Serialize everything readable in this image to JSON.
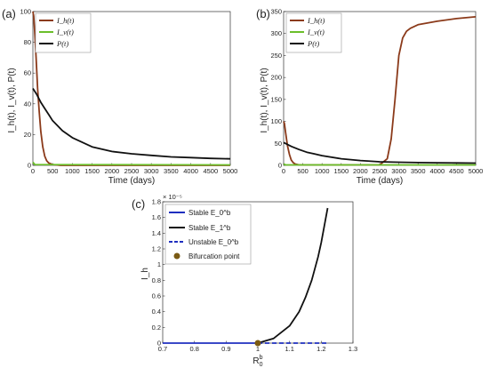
{
  "panels": [
    {
      "label": "(a)"
    },
    {
      "label": "(b)"
    },
    {
      "label": "(c)"
    }
  ],
  "chart_data": [
    {
      "type": "line",
      "panel": "(a)",
      "xlabel": "Time (days)",
      "ylabel": "I_h(t), I_v(t), P(t)",
      "xlim": [
        0,
        5000
      ],
      "ylim": [
        0,
        100
      ],
      "xticks": [
        "0",
        "500",
        "1000",
        "1500",
        "2000",
        "2500",
        "3000",
        "3500",
        "4000",
        "4500",
        "5000"
      ],
      "yticks": [
        "0",
        "20",
        "40",
        "60",
        "80",
        "100"
      ],
      "grid": false,
      "legend": "top-left",
      "series": [
        {
          "name": "I_h(t)",
          "color": "#8B3A1A",
          "x": [
            0,
            20,
            50,
            80,
            120,
            160,
            200,
            250,
            300,
            350,
            400,
            500,
            700,
            1000,
            5000
          ],
          "y": [
            100,
            97,
            85,
            70,
            50,
            35,
            22,
            12,
            6,
            3,
            1.5,
            0.5,
            0,
            0,
            0
          ]
        },
        {
          "name": "I_v(t)",
          "color": "#6BBF2A",
          "x": [
            0,
            50,
            5000
          ],
          "y": [
            2,
            0.5,
            0.3
          ]
        },
        {
          "name": "P(t)",
          "color": "#111111",
          "x": [
            0,
            100,
            200,
            300,
            400,
            500,
            750,
            1000,
            1500,
            2000,
            2500,
            3000,
            3500,
            4000,
            4500,
            5000
          ],
          "y": [
            50,
            46,
            41,
            37,
            33,
            29,
            22.5,
            18,
            12,
            9,
            7.5,
            6.5,
            5.5,
            5,
            4.5,
            4.2
          ]
        }
      ]
    },
    {
      "type": "line",
      "panel": "(b)",
      "xlabel": "Time (days)",
      "ylabel": "I_h(t), I_v(t), P(t)",
      "xlim": [
        0,
        5000
      ],
      "ylim": [
        0,
        350
      ],
      "xticks": [
        "0",
        "500",
        "1000",
        "1500",
        "2000",
        "2500",
        "3000",
        "3500",
        "4000",
        "4500",
        "5000"
      ],
      "yticks": [
        "0",
        "50",
        "100",
        "150",
        "200",
        "250",
        "300",
        "350"
      ],
      "grid": false,
      "legend": "top-left",
      "series": [
        {
          "name": "I_h(t)",
          "color": "#8B3A1A",
          "x": [
            0,
            20,
            50,
            100,
            150,
            200,
            250,
            300,
            400,
            2500,
            2700,
            2800,
            2900,
            3000,
            3100,
            3200,
            3300,
            3500,
            4000,
            4500,
            5000
          ],
          "y": [
            100,
            95,
            75,
            45,
            25,
            12,
            6,
            3,
            1,
            1,
            15,
            60,
            150,
            250,
            290,
            305,
            312,
            320,
            328,
            334,
            338
          ]
        },
        {
          "name": "I_v(t)",
          "color": "#6BBF2A",
          "x": [
            0,
            50,
            5000
          ],
          "y": [
            3,
            1,
            1
          ]
        },
        {
          "name": "P(t)",
          "color": "#111111",
          "x": [
            0,
            200,
            400,
            600,
            800,
            1000,
            1500,
            2000,
            2500,
            3000,
            3500,
            4000,
            4500,
            5000
          ],
          "y": [
            52,
            43,
            36,
            30,
            26,
            22,
            15,
            11,
            8,
            7,
            6.2,
            5.8,
            5.4,
            5
          ]
        }
      ]
    },
    {
      "type": "line",
      "panel": "(c)",
      "xlabel": "R_0^b",
      "ylabel": "I_h",
      "y_multiplier": "× 10⁻⁵",
      "xlim": [
        0.7,
        1.3
      ],
      "ylim": [
        0,
        1.8
      ],
      "xticks": [
        "0.7",
        "0.8",
        "0.9",
        "1",
        "1.1",
        "1.2",
        "1.3"
      ],
      "yticks": [
        "0",
        "0.2",
        "0.4",
        "0.6",
        "0.8",
        "1",
        "1.2",
        "1.4",
        "1.6",
        "1.8"
      ],
      "grid": false,
      "legend": "top-left",
      "series": [
        {
          "name": "Stable E_0^b",
          "color": "#1f2fbf",
          "style": "solid",
          "x": [
            0.7,
            1.0
          ],
          "y": [
            0,
            0
          ]
        },
        {
          "name": "Stable E_1^b",
          "color": "#111111",
          "style": "solid",
          "x": [
            1.0,
            1.05,
            1.1,
            1.13,
            1.15,
            1.17,
            1.19,
            1.2,
            1.21,
            1.22
          ],
          "y": [
            0,
            0.06,
            0.22,
            0.4,
            0.58,
            0.8,
            1.1,
            1.28,
            1.5,
            1.72
          ]
        },
        {
          "name": "Unstable E_0^b",
          "color": "#1f2fbf",
          "style": "dashed",
          "x": [
            1.0,
            1.22
          ],
          "y": [
            0,
            0
          ]
        }
      ],
      "points": [
        {
          "name": "Bifurcation point",
          "color": "#7a5a14",
          "x": 1.0,
          "y": 0
        }
      ]
    }
  ]
}
